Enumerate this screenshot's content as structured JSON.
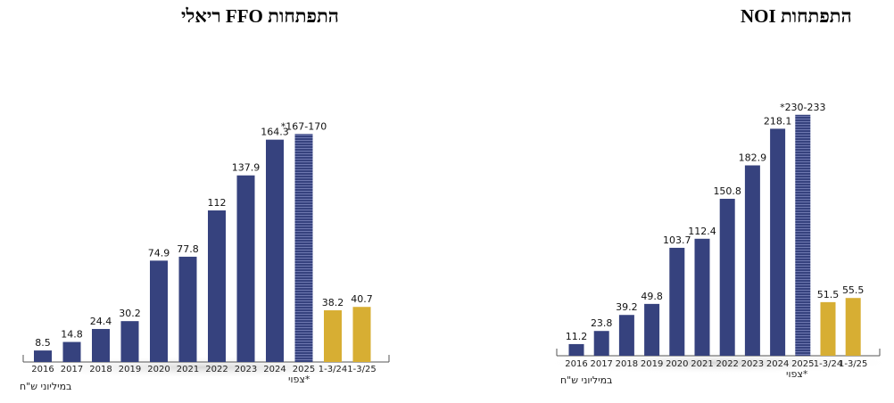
{
  "chart_data": [
    {
      "type": "bar",
      "title": "התפתחות FFO ריאלי",
      "unit_label": "במיליוני ש\"ח",
      "forecast_note": "*צפוי",
      "categories": [
        "2016",
        "2017",
        "2018",
        "2019",
        "2020",
        "2021",
        "2022",
        "2023",
        "2024",
        "2025",
        "1-3/24",
        "1-3/25"
      ],
      "values": [
        8.5,
        14.8,
        24.4,
        30.2,
        74.9,
        77.8,
        112,
        137.9,
        164.3,
        168.5,
        38.2,
        40.7
      ],
      "value_labels": [
        "8.5",
        "14.8",
        "24.4",
        "30.2",
        "74.9",
        "77.8",
        "112",
        "137.9",
        "164.3",
        "*167-170",
        "38.2",
        "40.7"
      ],
      "bar_colors": [
        "#36427e",
        "#36427e",
        "#36427e",
        "#36427e",
        "#36427e",
        "#36427e",
        "#36427e",
        "#36427e",
        "#36427e",
        "#36427e",
        "#d7ae33",
        "#d7ae33"
      ],
      "ylim": [
        0,
        170
      ]
    },
    {
      "type": "bar",
      "title": "התפתחות NOI",
      "unit_label": "במיליוני ש\"ח",
      "forecast_note": "*צפוי",
      "categories": [
        "2016",
        "2017",
        "2018",
        "2019",
        "2020",
        "2021",
        "2022",
        "2023",
        "2024",
        "2025",
        "1-3/24",
        "1-3/25"
      ],
      "values": [
        11.2,
        23.8,
        39.2,
        49.8,
        103.7,
        112.4,
        150.8,
        182.9,
        218.1,
        231.5,
        51.5,
        55.5
      ],
      "value_labels": [
        "11.2",
        "23.8",
        "39.2",
        "49.8",
        "103.7",
        "112.4",
        "150.8",
        "182.9",
        "218.1",
        "*230-233",
        "51.5",
        "55.5"
      ],
      "bar_colors": [
        "#36427e",
        "#36427e",
        "#36427e",
        "#36427e",
        "#36427e",
        "#36427e",
        "#36427e",
        "#36427e",
        "#36427e",
        "#36427e",
        "#d7ae33",
        "#d7ae33"
      ],
      "ylim": [
        0,
        233
      ]
    }
  ]
}
